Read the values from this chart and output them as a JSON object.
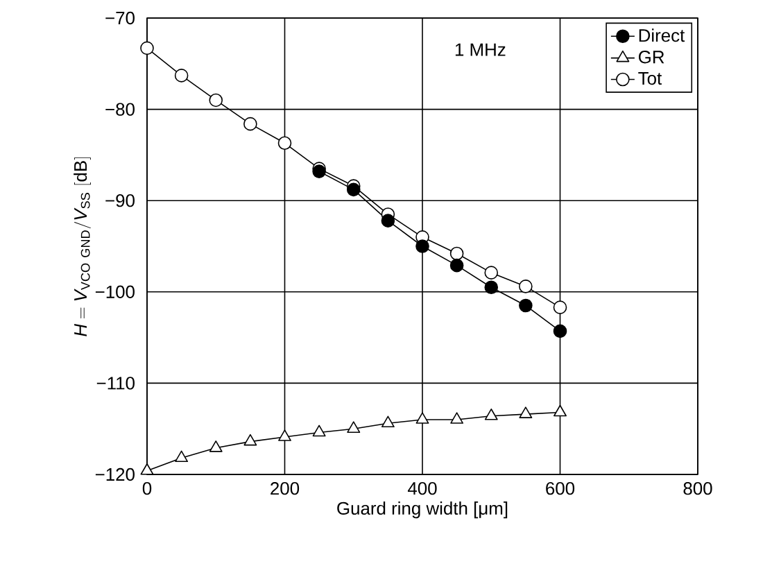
{
  "chart_data": {
    "type": "line",
    "xlabel": "Guard ring width [μm]",
    "ylabel": "\\mathit{H} = \\mathit{V}_{\\mathrm{VCO\\ GND}}/\\mathit{V}_{\\mathrm{SS}}\\ \\mathrm{[dB]}",
    "annotations": [
      "1 MHz"
    ],
    "xlim": [
      0,
      800
    ],
    "xticks": [
      0,
      200,
      400,
      600,
      800
    ],
    "ylim": [
      -120,
      -70
    ],
    "yticks": [
      {
        "value": -120,
        "label": "−120"
      },
      {
        "value": -110,
        "label": "−110"
      },
      {
        "value": -100,
        "label": "−100"
      },
      {
        "value": -90,
        "label": "−90"
      },
      {
        "value": -80,
        "label": "−80"
      },
      {
        "value": -70,
        "label": "−70"
      }
    ],
    "grid": true,
    "legend": "top right",
    "line_style": "solid",
    "series": [
      {
        "name": "Direct",
        "color": "#000000",
        "marker": "circle",
        "x": [
          250,
          300,
          350,
          400,
          450,
          500,
          550,
          600
        ],
        "values": [
          -86.8,
          -88.8,
          -92.2,
          -95.0,
          -97.1,
          -99.5,
          -101.5,
          -104.3
        ]
      },
      {
        "name": "GR",
        "color": "#ffffff",
        "marker": "triangle",
        "x": [
          0,
          50,
          100,
          150,
          200,
          250,
          300,
          350,
          400,
          450,
          500,
          550,
          600
        ],
        "values": [
          -119.6,
          -118.2,
          -117.1,
          -116.4,
          -115.9,
          -115.4,
          -115.0,
          -114.4,
          -114.0,
          -114.0,
          -113.6,
          -113.4,
          -113.2
        ]
      },
      {
        "name": "Tot",
        "color": "#ffffff",
        "marker": "circle",
        "x": [
          0,
          50,
          100,
          150,
          200,
          250,
          300,
          350,
          400,
          450,
          500,
          550,
          600
        ],
        "values": [
          -73.3,
          -76.3,
          -79.0,
          -81.6,
          -83.7,
          -86.5,
          -88.4,
          -91.5,
          -94.0,
          -95.8,
          -97.9,
          -99.4,
          -101.7
        ]
      }
    ]
  }
}
